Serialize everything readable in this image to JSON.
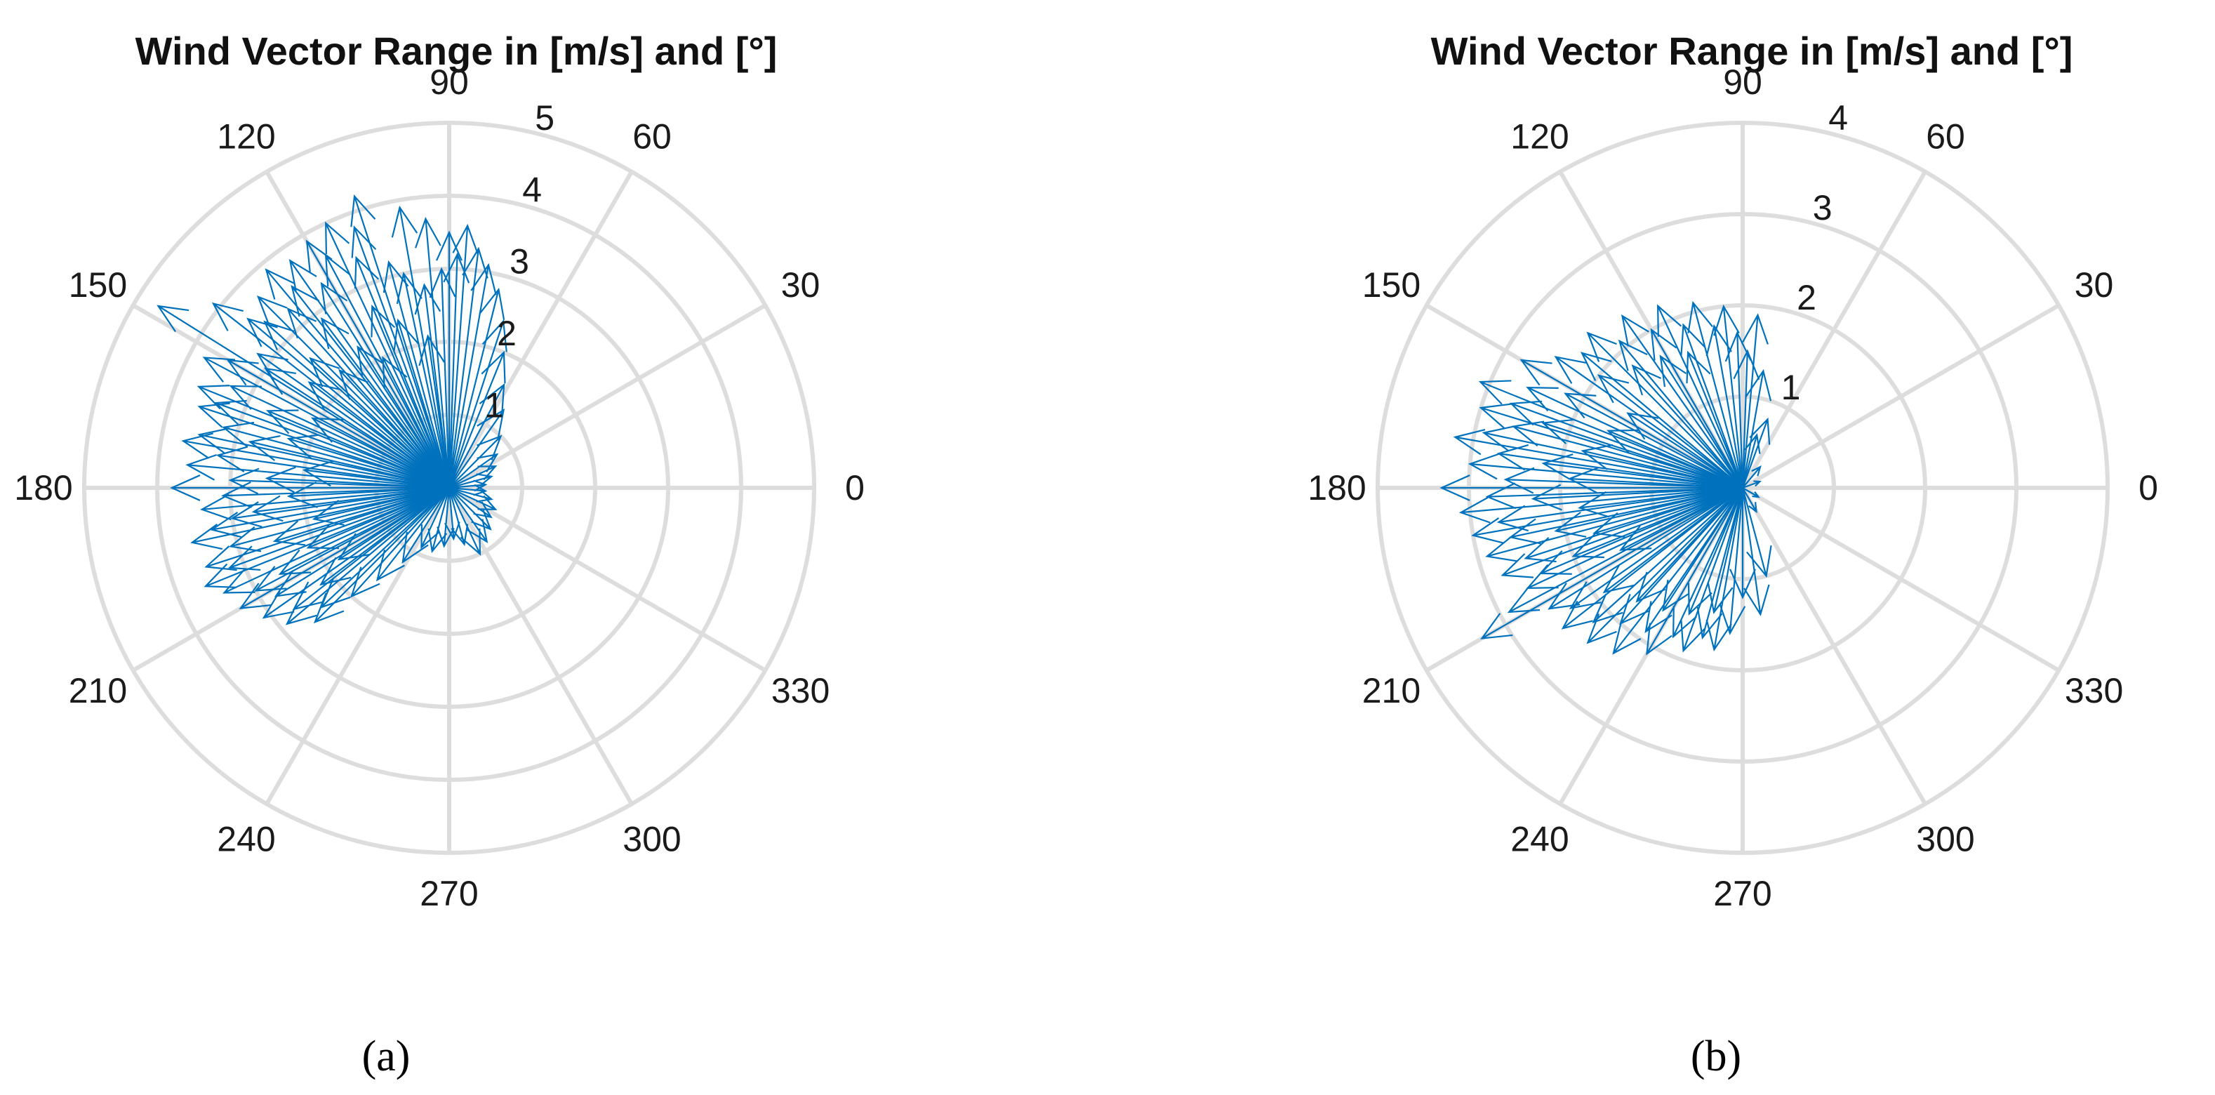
{
  "chart_data": [
    {
      "type": "polar-vector",
      "panel_label": "(a)",
      "title": "Wind Vector Range in [m/s] and [°]",
      "angle_unit": "degrees",
      "theta_ticks": [
        0,
        30,
        60,
        90,
        120,
        150,
        180,
        210,
        240,
        270,
        300,
        330
      ],
      "theta_tick_labels": [
        "0",
        "30",
        "60",
        "90",
        "120",
        "150",
        "180",
        "210",
        "240",
        "270",
        "300",
        "330"
      ],
      "r_ticks": [
        1,
        2,
        3,
        4,
        5
      ],
      "r_tick_labels": [
        "1",
        "2",
        "3",
        "4",
        "5"
      ],
      "r_label_angle_deg": 80,
      "rlim": [
        0,
        5
      ],
      "grid": true,
      "series_color": "#0072BD",
      "vectors": [
        {
          "dir": 90,
          "speed": 3.5
        },
        {
          "dir": 95,
          "speed": 3.7
        },
        {
          "dir": 100,
          "speed": 3.9
        },
        {
          "dir": 105,
          "speed": 3.2
        },
        {
          "dir": 108,
          "speed": 4.2
        },
        {
          "dir": 110,
          "speed": 3.8
        },
        {
          "dir": 112,
          "speed": 3.4
        },
        {
          "dir": 115,
          "speed": 4.0
        },
        {
          "dir": 118,
          "speed": 3.6
        },
        {
          "dir": 120,
          "speed": 3.9
        },
        {
          "dir": 122,
          "speed": 3.3
        },
        {
          "dir": 125,
          "speed": 3.8
        },
        {
          "dir": 128,
          "speed": 3.5
        },
        {
          "dir": 130,
          "speed": 3.9
        },
        {
          "dir": 132,
          "speed": 3.3
        },
        {
          "dir": 135,
          "speed": 3.7
        },
        {
          "dir": 138,
          "speed": 3.4
        },
        {
          "dir": 140,
          "speed": 3.6
        },
        {
          "dir": 142,
          "speed": 4.1
        },
        {
          "dir": 145,
          "speed": 3.2
        },
        {
          "dir": 148,
          "speed": 4.7
        },
        {
          "dir": 150,
          "speed": 3.5
        },
        {
          "dir": 152,
          "speed": 3.8
        },
        {
          "dir": 155,
          "speed": 3.3
        },
        {
          "dir": 158,
          "speed": 3.7
        },
        {
          "dir": 160,
          "speed": 3.4
        },
        {
          "dir": 162,
          "speed": 3.6
        },
        {
          "dir": 165,
          "speed": 3.2
        },
        {
          "dir": 168,
          "speed": 3.5
        },
        {
          "dir": 170,
          "speed": 3.7
        },
        {
          "dir": 172,
          "speed": 3.2
        },
        {
          "dir": 175,
          "speed": 3.6
        },
        {
          "dir": 178,
          "speed": 3.0
        },
        {
          "dir": 180,
          "speed": 3.8
        },
        {
          "dir": 182,
          "speed": 3.1
        },
        {
          "dir": 185,
          "speed": 3.4
        },
        {
          "dir": 188,
          "speed": 3.0
        },
        {
          "dir": 190,
          "speed": 3.3
        },
        {
          "dir": 192,
          "speed": 3.6
        },
        {
          "dir": 195,
          "speed": 3.1
        },
        {
          "dir": 198,
          "speed": 3.5
        },
        {
          "dir": 200,
          "speed": 3.2
        },
        {
          "dir": 202,
          "speed": 3.6
        },
        {
          "dir": 205,
          "speed": 3.4
        },
        {
          "dir": 208,
          "speed": 3.0
        },
        {
          "dir": 210,
          "speed": 3.3
        },
        {
          "dir": 212,
          "speed": 2.8
        },
        {
          "dir": 215,
          "speed": 3.1
        },
        {
          "dir": 218,
          "speed": 2.7
        },
        {
          "dir": 220,
          "speed": 2.9
        },
        {
          "dir": 223,
          "speed": 2.4
        },
        {
          "dir": 225,
          "speed": 2.6
        },
        {
          "dir": 228,
          "speed": 2.0
        },
        {
          "dir": 232,
          "speed": 1.6
        },
        {
          "dir": 238,
          "speed": 1.2
        },
        {
          "dir": 245,
          "speed": 0.9
        },
        {
          "dir": 255,
          "speed": 0.9
        },
        {
          "dir": 265,
          "speed": 0.8
        },
        {
          "dir": 275,
          "speed": 0.7
        },
        {
          "dir": 285,
          "speed": 0.8
        },
        {
          "dir": 295,
          "speed": 1.0
        },
        {
          "dir": 305,
          "speed": 0.9
        },
        {
          "dir": 315,
          "speed": 0.8
        },
        {
          "dir": 325,
          "speed": 0.7
        },
        {
          "dir": 335,
          "speed": 0.7
        },
        {
          "dir": 345,
          "speed": 0.6
        },
        {
          "dir": 355,
          "speed": 0.5
        },
        {
          "dir": 5,
          "speed": 0.5
        },
        {
          "dir": 15,
          "speed": 0.6
        },
        {
          "dir": 25,
          "speed": 0.7
        },
        {
          "dir": 35,
          "speed": 0.8
        },
        {
          "dir": 45,
          "speed": 1.0
        },
        {
          "dir": 55,
          "speed": 1.3
        },
        {
          "dir": 62,
          "speed": 1.6
        },
        {
          "dir": 68,
          "speed": 2.0
        },
        {
          "dir": 72,
          "speed": 2.4
        },
        {
          "dir": 76,
          "speed": 2.8
        },
        {
          "dir": 80,
          "speed": 3.1
        },
        {
          "dir": 83,
          "speed": 3.3
        },
        {
          "dir": 86,
          "speed": 3.6
        },
        {
          "dir": 88,
          "speed": 3.2
        },
        {
          "dir": 92,
          "speed": 3.0
        },
        {
          "dir": 97,
          "speed": 2.8
        },
        {
          "dir": 102,
          "speed": 3.0
        },
        {
          "dir": 113,
          "speed": 2.7
        },
        {
          "dir": 127,
          "speed": 2.9
        },
        {
          "dir": 137,
          "speed": 2.6
        },
        {
          "dir": 147,
          "speed": 3.0
        },
        {
          "dir": 157,
          "speed": 2.7
        },
        {
          "dir": 167,
          "speed": 2.8
        },
        {
          "dir": 177,
          "speed": 2.5
        },
        {
          "dir": 187,
          "speed": 2.7
        },
        {
          "dir": 197,
          "speed": 2.5
        },
        {
          "dir": 207,
          "speed": 2.6
        },
        {
          "dir": 217,
          "speed": 2.2
        },
        {
          "dir": 133,
          "speed": 2.2
        },
        {
          "dir": 143,
          "speed": 2.4
        },
        {
          "dir": 153,
          "speed": 2.1
        },
        {
          "dir": 163,
          "speed": 2.3
        },
        {
          "dir": 173,
          "speed": 2.0
        },
        {
          "dir": 183,
          "speed": 2.2
        },
        {
          "dir": 193,
          "speed": 1.9
        },
        {
          "dir": 203,
          "speed": 2.1
        },
        {
          "dir": 213,
          "speed": 1.8
        },
        {
          "dir": 123,
          "speed": 2.3
        },
        {
          "dir": 117,
          "speed": 2.0
        },
        {
          "dir": 107,
          "speed": 2.4
        },
        {
          "dir": 98,
          "speed": 2.1
        }
      ]
    },
    {
      "type": "polar-vector",
      "panel_label": "(b)",
      "title": "Wind Vector Range in [m/s] and [°]",
      "angle_unit": "degrees",
      "theta_ticks": [
        0,
        30,
        60,
        90,
        120,
        150,
        180,
        210,
        240,
        270,
        300,
        330
      ],
      "theta_tick_labels": [
        "0",
        "30",
        "60",
        "90",
        "120",
        "150",
        "180",
        "210",
        "240",
        "270",
        "300",
        "330"
      ],
      "r_ticks": [
        1,
        2,
        3,
        4
      ],
      "r_tick_labels": [
        "1",
        "2",
        "3",
        "4"
      ],
      "r_label_angle_deg": 80,
      "rlim": [
        0,
        4
      ],
      "grid": true,
      "series_color": "#0072BD",
      "vectors": [
        {
          "dir": 85,
          "speed": 1.9
        },
        {
          "dir": 88,
          "speed": 1.5
        },
        {
          "dir": 92,
          "speed": 1.7
        },
        {
          "dir": 96,
          "speed": 2.0
        },
        {
          "dir": 100,
          "speed": 1.8
        },
        {
          "dir": 105,
          "speed": 2.1
        },
        {
          "dir": 110,
          "speed": 1.9
        },
        {
          "dir": 115,
          "speed": 2.2
        },
        {
          "dir": 120,
          "speed": 2.0
        },
        {
          "dir": 125,
          "speed": 2.3
        },
        {
          "dir": 130,
          "speed": 2.1
        },
        {
          "dir": 135,
          "speed": 2.4
        },
        {
          "dir": 140,
          "speed": 2.3
        },
        {
          "dir": 145,
          "speed": 2.5
        },
        {
          "dir": 150,
          "speed": 2.8
        },
        {
          "dir": 155,
          "speed": 2.6
        },
        {
          "dir": 158,
          "speed": 3.1
        },
        {
          "dir": 160,
          "speed": 2.7
        },
        {
          "dir": 163,
          "speed": 3.0
        },
        {
          "dir": 165,
          "speed": 2.6
        },
        {
          "dir": 168,
          "speed": 2.9
        },
        {
          "dir": 170,
          "speed": 3.2
        },
        {
          "dir": 172,
          "speed": 2.7
        },
        {
          "dir": 175,
          "speed": 3.0
        },
        {
          "dir": 178,
          "speed": 2.6
        },
        {
          "dir": 180,
          "speed": 3.3
        },
        {
          "dir": 182,
          "speed": 2.8
        },
        {
          "dir": 185,
          "speed": 3.1
        },
        {
          "dir": 188,
          "speed": 2.7
        },
        {
          "dir": 190,
          "speed": 3.0
        },
        {
          "dir": 192,
          "speed": 2.6
        },
        {
          "dir": 195,
          "speed": 2.9
        },
        {
          "dir": 198,
          "speed": 2.5
        },
        {
          "dir": 200,
          "speed": 2.8
        },
        {
          "dir": 203,
          "speed": 2.4
        },
        {
          "dir": 205,
          "speed": 2.6
        },
        {
          "dir": 208,
          "speed": 2.9
        },
        {
          "dir": 210,
          "speed": 3.3
        },
        {
          "dir": 212,
          "speed": 2.5
        },
        {
          "dir": 215,
          "speed": 2.3
        },
        {
          "dir": 218,
          "speed": 2.5
        },
        {
          "dir": 222,
          "speed": 2.2
        },
        {
          "dir": 225,
          "speed": 2.4
        },
        {
          "dir": 228,
          "speed": 2.0
        },
        {
          "dir": 232,
          "speed": 2.3
        },
        {
          "dir": 236,
          "speed": 1.9
        },
        {
          "dir": 240,
          "speed": 2.1
        },
        {
          "dir": 245,
          "speed": 1.8
        },
        {
          "dir": 250,
          "speed": 1.9
        },
        {
          "dir": 255,
          "speed": 1.7
        },
        {
          "dir": 260,
          "speed": 1.8
        },
        {
          "dir": 265,
          "speed": 1.6
        },
        {
          "dir": 270,
          "speed": 1.2
        },
        {
          "dir": 278,
          "speed": 1.4
        },
        {
          "dir": 285,
          "speed": 1.0
        },
        {
          "dir": 300,
          "speed": 0.3
        },
        {
          "dir": 330,
          "speed": 0.2
        },
        {
          "dir": 20,
          "speed": 0.2
        },
        {
          "dir": 50,
          "speed": 0.3
        },
        {
          "dir": 70,
          "speed": 0.8
        },
        {
          "dir": 80,
          "speed": 1.3
        },
        {
          "dir": 75,
          "speed": 0.6
        },
        {
          "dir": 152,
          "speed": 2.2
        },
        {
          "dir": 162,
          "speed": 2.3
        },
        {
          "dir": 173,
          "speed": 2.2
        },
        {
          "dir": 183,
          "speed": 2.3
        },
        {
          "dir": 193,
          "speed": 2.1
        },
        {
          "dir": 202,
          "speed": 2.0
        },
        {
          "dir": 142,
          "speed": 2.0
        },
        {
          "dir": 132,
          "speed": 1.8
        },
        {
          "dir": 122,
          "speed": 1.7
        },
        {
          "dir": 112,
          "speed": 1.6
        },
        {
          "dir": 217,
          "speed": 1.9
        },
        {
          "dir": 227,
          "speed": 1.7
        },
        {
          "dir": 237,
          "speed": 1.6
        },
        {
          "dir": 247,
          "speed": 1.5
        },
        {
          "dir": 257,
          "speed": 1.4
        },
        {
          "dir": 167,
          "speed": 1.8
        },
        {
          "dir": 177,
          "speed": 1.9
        },
        {
          "dir": 187,
          "speed": 1.8
        },
        {
          "dir": 197,
          "speed": 1.7
        },
        {
          "dir": 157,
          "speed": 1.6
        },
        {
          "dir": 147,
          "speed": 1.5
        },
        {
          "dir": 207,
          "speed": 1.5
        }
      ]
    }
  ]
}
